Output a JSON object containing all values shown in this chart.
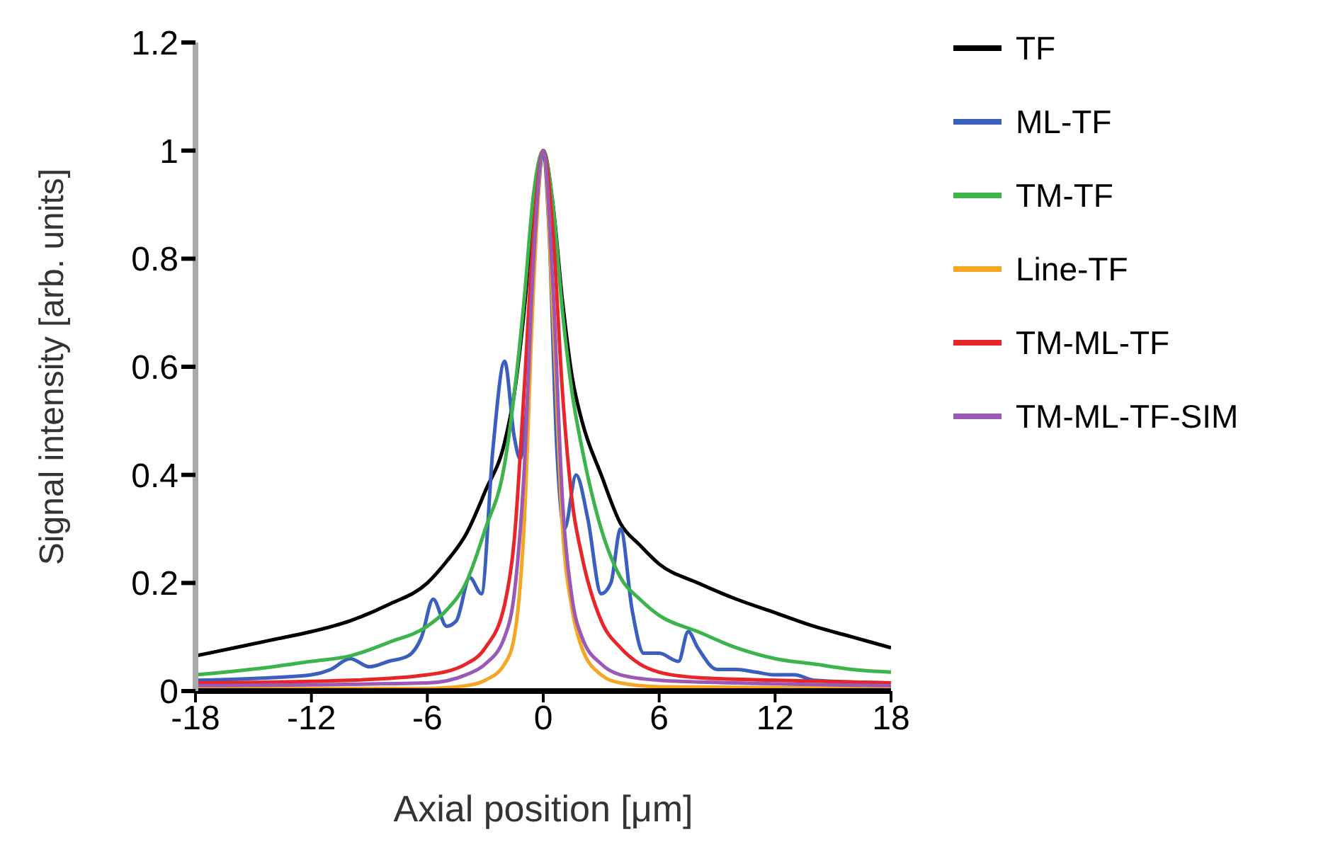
{
  "chart_data": {
    "type": "line",
    "xlabel": "Axial position [μm]",
    "ylabel": "Signal intensity [arb. units]",
    "xlim": [
      -18,
      18
    ],
    "xticks": [
      -18,
      -12,
      -6,
      0,
      6,
      12,
      18
    ],
    "ylim": [
      0,
      1.2
    ],
    "yticks": [
      0,
      0.2,
      0.4,
      0.6,
      0.8,
      1,
      1.2
    ],
    "legend": "right",
    "marker": "none",
    "line_style": "solid",
    "series": [
      {
        "name": "TF",
        "color": "#000000",
        "x": [
          -18,
          -16,
          -14,
          -12,
          -10,
          -8,
          -6,
          -5,
          -4,
          -3,
          -2,
          -1.5,
          -1,
          -0.5,
          0,
          0.5,
          1,
          1.5,
          2,
          3,
          4,
          5,
          6,
          8,
          10,
          12,
          14,
          16,
          18
        ],
        "values": [
          0.065,
          0.08,
          0.095,
          0.11,
          0.13,
          0.16,
          0.2,
          0.24,
          0.29,
          0.37,
          0.46,
          0.55,
          0.7,
          0.9,
          1,
          0.9,
          0.72,
          0.58,
          0.5,
          0.4,
          0.31,
          0.27,
          0.235,
          0.2,
          0.17,
          0.145,
          0.12,
          0.1,
          0.08
        ]
      },
      {
        "name": "ML-TF",
        "color": "#3a5fbf",
        "x": [
          -18,
          -14,
          -12,
          -11,
          -10,
          -9,
          -8,
          -7,
          -6.3,
          -5.7,
          -5,
          -4.5,
          -3.8,
          -3.2,
          -2.6,
          -2,
          -1.5,
          -1.2,
          -0.8,
          -0.3,
          0,
          0.3,
          0.7,
          1.1,
          1.7,
          2.3,
          3,
          3.5,
          4,
          4.6,
          5.2,
          6,
          7,
          7.5,
          8,
          9,
          10,
          11,
          12,
          13,
          14,
          18
        ],
        "values": [
          0.02,
          0.025,
          0.03,
          0.04,
          0.06,
          0.045,
          0.055,
          0.065,
          0.1,
          0.17,
          0.12,
          0.13,
          0.21,
          0.18,
          0.45,
          0.61,
          0.47,
          0.43,
          0.55,
          0.9,
          1,
          0.85,
          0.45,
          0.3,
          0.4,
          0.32,
          0.18,
          0.2,
          0.3,
          0.15,
          0.07,
          0.07,
          0.055,
          0.11,
          0.08,
          0.04,
          0.04,
          0.035,
          0.03,
          0.03,
          0.02,
          0.015
        ]
      },
      {
        "name": "TM-TF",
        "color": "#3cb44b",
        "x": [
          -18,
          -14,
          -12,
          -10,
          -8,
          -6,
          -5,
          -4,
          -3,
          -2,
          -1.5,
          -1,
          -0.5,
          0,
          0.5,
          1,
          1.5,
          2,
          3,
          4,
          5,
          6,
          8,
          10,
          12,
          14,
          16,
          18
        ],
        "values": [
          0.03,
          0.045,
          0.055,
          0.065,
          0.09,
          0.12,
          0.15,
          0.2,
          0.3,
          0.42,
          0.55,
          0.72,
          0.92,
          1,
          0.9,
          0.7,
          0.55,
          0.45,
          0.3,
          0.21,
          0.17,
          0.14,
          0.11,
          0.08,
          0.06,
          0.05,
          0.04,
          0.035
        ]
      },
      {
        "name": "Line-TF",
        "color": "#f5a623",
        "x": [
          -18,
          -6,
          -4,
          -3,
          -2,
          -1.5,
          -1,
          -0.5,
          0,
          0.5,
          1,
          1.5,
          2,
          3,
          4,
          6,
          18
        ],
        "values": [
          0.005,
          0.005,
          0.01,
          0.02,
          0.05,
          0.1,
          0.3,
          0.75,
          1,
          0.7,
          0.3,
          0.15,
          0.08,
          0.03,
          0.015,
          0.008,
          0.005
        ]
      },
      {
        "name": "TM-ML-TF",
        "color": "#e8262a",
        "x": [
          -18,
          -10,
          -6,
          -4,
          -3,
          -2,
          -1.5,
          -1,
          -0.5,
          0,
          0.5,
          1,
          1.5,
          2,
          3,
          4,
          5,
          6,
          8,
          12,
          18
        ],
        "values": [
          0.015,
          0.02,
          0.03,
          0.05,
          0.08,
          0.16,
          0.28,
          0.55,
          0.85,
          1,
          0.85,
          0.55,
          0.35,
          0.25,
          0.13,
          0.08,
          0.05,
          0.035,
          0.025,
          0.02,
          0.015
        ]
      },
      {
        "name": "TM-ML-TF-SIM",
        "color": "#9b59b6",
        "x": [
          -18,
          -6,
          -4,
          -3,
          -2,
          -1.5,
          -1,
          -0.5,
          0,
          0.5,
          1,
          1.5,
          2,
          3,
          4,
          6,
          10,
          18
        ],
        "values": [
          0.01,
          0.015,
          0.03,
          0.05,
          0.1,
          0.18,
          0.4,
          0.8,
          1,
          0.75,
          0.35,
          0.17,
          0.1,
          0.05,
          0.03,
          0.02,
          0.015,
          0.01
        ]
      }
    ]
  }
}
